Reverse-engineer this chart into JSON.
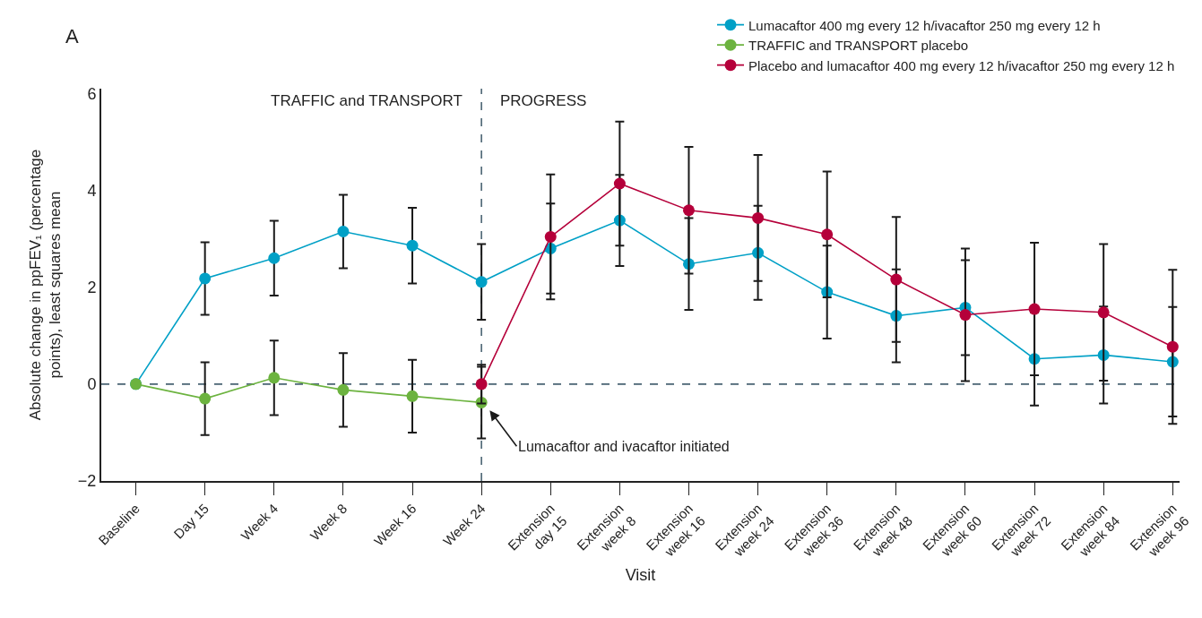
{
  "chart_data": {
    "type": "line",
    "xlabel": "Visit",
    "ylabel": "Absolute change in ppFEV₁ (percentage\npoints), least squares mean",
    "categories": [
      "Baseline",
      "Day 15",
      "Week 4",
      "Week 8",
      "Week 16",
      "Week 24",
      "Extension\nday 15",
      "Extension\nweek 8",
      "Extension\nweek 16",
      "Extension\nweek 24",
      "Extension\nweek 36",
      "Extension\nweek 48",
      "Extension\nweek 60",
      "Extension\nweek 72",
      "Extension\nweek 84",
      "Extension\nweek 96"
    ],
    "ylim": [
      -2,
      6.1
    ],
    "yticks": [
      -2,
      0,
      2,
      4,
      6
    ],
    "grid": false,
    "legend": "top right",
    "marker": "circle",
    "line_style": "solid",
    "series": [
      {
        "name": "Lumacaftor 400 mg every 12 h/ivacaftor 250 mg every 12 h",
        "color": "#00a0c6",
        "values": [
          0,
          2.18,
          2.6,
          3.15,
          2.86,
          2.11,
          2.8,
          3.38,
          2.48,
          2.71,
          1.9,
          1.41,
          1.58,
          0.52,
          0.6,
          0.46
        ],
        "errors": [
          null,
          0.75,
          0.77,
          0.76,
          0.78,
          0.78,
          0.93,
          0.94,
          0.95,
          0.97,
          0.96,
          0.96,
          0.98,
          0.96,
          1.0,
          1.13
        ]
      },
      {
        "name": "TRAFFIC and TRANSPORT placebo",
        "color": "#6cb33f",
        "values": [
          0,
          -0.3,
          0.13,
          -0.12,
          -0.25,
          -0.38,
          null,
          null,
          null,
          null,
          null,
          null,
          null,
          null,
          null,
          null
        ],
        "errors": [
          null,
          0.75,
          0.77,
          0.76,
          0.75,
          0.74,
          null,
          null,
          null,
          null,
          null,
          null,
          null,
          null,
          null,
          null
        ]
      },
      {
        "name": "Placebo and lumacaftor 400 mg every 12 h/ivacaftor 250 mg every 12 h",
        "color": "#b5003a",
        "values": [
          null,
          null,
          null,
          null,
          null,
          0,
          3.04,
          4.14,
          3.59,
          3.43,
          3.09,
          2.16,
          1.43,
          1.55,
          1.48,
          0.77
        ],
        "errors": [
          null,
          null,
          null,
          null,
          null,
          0.4,
          1.29,
          1.28,
          1.31,
          1.3,
          1.3,
          1.29,
          1.37,
          1.37,
          1.41,
          1.59
        ]
      }
    ],
    "ref_lines": [
      {
        "axis": "y",
        "value": 0,
        "color": "#4a6473",
        "line_style": "dashed"
      },
      {
        "axis": "x",
        "value": "Week 24",
        "color": "#4a6473",
        "line_style": "dashed"
      }
    ],
    "annotations": [
      "A",
      "TRAFFIC and TRANSPORT",
      "PROGRESS",
      "Lumacaftor and ivacaftor initiated"
    ]
  }
}
